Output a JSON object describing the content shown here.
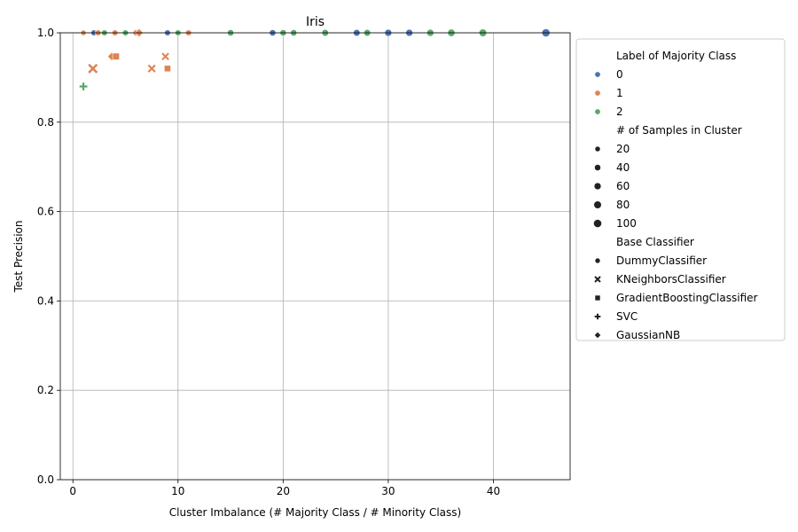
{
  "chart_data": {
    "type": "scatter",
    "title": "Iris",
    "xlabel": "Cluster Imbalance (# Majority Class / # Minority Class)",
    "ylabel": "Test Precision",
    "xlim": [
      -1.2,
      47.3
    ],
    "ylim": [
      0,
      1.0
    ],
    "xticks": [
      0,
      10,
      20,
      30,
      40
    ],
    "yticks": [
      0.0,
      0.2,
      0.4,
      0.6,
      0.8,
      1.0
    ],
    "grid": true,
    "legend_placement": "outside-right",
    "colors": {
      "0": "#4c72b0",
      "1": "#dd8452",
      "2": "#55a868"
    },
    "legend": {
      "hue_title": "Label of Majority Class",
      "hue_items": [
        "0",
        "1",
        "2"
      ],
      "size_title": "# of Samples in Cluster",
      "size_items": [
        "20",
        "40",
        "60",
        "80",
        "100"
      ],
      "style_title": "Base Classifier",
      "style_items": [
        {
          "label": "DummyClassifier",
          "marker": "circle"
        },
        {
          "label": "KNeighborsClassifier",
          "marker": "x"
        },
        {
          "label": "GradientBoostingClassifier",
          "marker": "square"
        },
        {
          "label": "SVC",
          "marker": "plus"
        },
        {
          "label": "GaussianNB",
          "marker": "diamond"
        }
      ]
    },
    "points": [
      {
        "x": 1.0,
        "y": 1.0,
        "cls": "1",
        "marker": "circle",
        "n": 20
      },
      {
        "x": 2.0,
        "y": 1.0,
        "cls": "0",
        "marker": "circle",
        "n": 30
      },
      {
        "x": 2.4,
        "y": 1.0,
        "cls": "1",
        "marker": "circle",
        "n": 30
      },
      {
        "x": 3.0,
        "y": 1.0,
        "cls": "2",
        "marker": "circle",
        "n": 30
      },
      {
        "x": 4.0,
        "y": 1.0,
        "cls": "1",
        "marker": "circle",
        "n": 30
      },
      {
        "x": 5.0,
        "y": 1.0,
        "cls": "2",
        "marker": "circle",
        "n": 30
      },
      {
        "x": 6.0,
        "y": 1.0,
        "cls": "1",
        "marker": "circle",
        "n": 30
      },
      {
        "x": 6.3,
        "y": 1.0,
        "cls": "1",
        "marker": "diamond",
        "n": 50
      },
      {
        "x": 9.0,
        "y": 1.0,
        "cls": "0",
        "marker": "circle",
        "n": 30
      },
      {
        "x": 10.0,
        "y": 1.0,
        "cls": "2",
        "marker": "circle",
        "n": 30
      },
      {
        "x": 11.0,
        "y": 1.0,
        "cls": "1",
        "marker": "circle",
        "n": 30
      },
      {
        "x": 15.0,
        "y": 1.0,
        "cls": "2",
        "marker": "circle",
        "n": 40
      },
      {
        "x": 19.0,
        "y": 1.0,
        "cls": "0",
        "marker": "circle",
        "n": 40
      },
      {
        "x": 20.0,
        "y": 1.0,
        "cls": "2",
        "marker": "circle",
        "n": 40
      },
      {
        "x": 21.0,
        "y": 1.0,
        "cls": "2",
        "marker": "circle",
        "n": 40
      },
      {
        "x": 24.0,
        "y": 1.0,
        "cls": "2",
        "marker": "circle",
        "n": 50
      },
      {
        "x": 27.0,
        "y": 1.0,
        "cls": "0",
        "marker": "circle",
        "n": 50
      },
      {
        "x": 28.0,
        "y": 1.0,
        "cls": "2",
        "marker": "circle",
        "n": 50
      },
      {
        "x": 30.0,
        "y": 1.0,
        "cls": "0",
        "marker": "circle",
        "n": 60
      },
      {
        "x": 32.0,
        "y": 1.0,
        "cls": "0",
        "marker": "circle",
        "n": 60
      },
      {
        "x": 34.0,
        "y": 1.0,
        "cls": "2",
        "marker": "circle",
        "n": 60
      },
      {
        "x": 36.0,
        "y": 1.0,
        "cls": "2",
        "marker": "circle",
        "n": 70
      },
      {
        "x": 39.0,
        "y": 1.0,
        "cls": "2",
        "marker": "circle",
        "n": 80
      },
      {
        "x": 45.0,
        "y": 1.0,
        "cls": "0",
        "marker": "circle",
        "n": 100
      },
      {
        "x": 1.0,
        "y": 0.88,
        "cls": "2",
        "marker": "plus",
        "n": 60
      },
      {
        "x": 1.9,
        "y": 0.92,
        "cls": "1",
        "marker": "x",
        "n": 100
      },
      {
        "x": 3.7,
        "y": 0.947,
        "cls": "1",
        "marker": "diamond",
        "n": 50
      },
      {
        "x": 4.1,
        "y": 0.947,
        "cls": "1",
        "marker": "square",
        "n": 50
      },
      {
        "x": 7.5,
        "y": 0.92,
        "cls": "1",
        "marker": "x",
        "n": 50
      },
      {
        "x": 8.8,
        "y": 0.947,
        "cls": "1",
        "marker": "x",
        "n": 40
      },
      {
        "x": 9.0,
        "y": 0.92,
        "cls": "1",
        "marker": "square",
        "n": 40
      }
    ]
  }
}
